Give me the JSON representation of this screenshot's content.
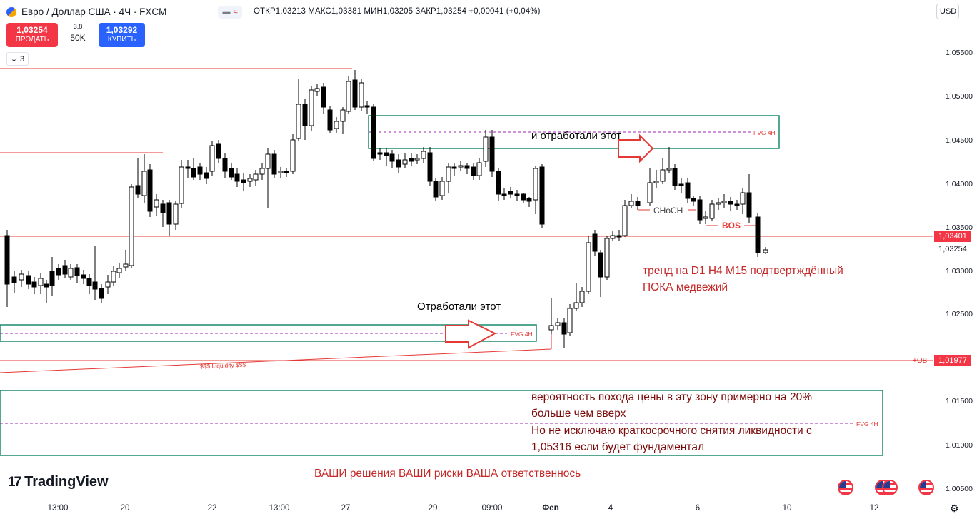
{
  "header": {
    "title": "Евро / Доллар США · 4Ч · FXCM",
    "ohlc": "ОТКР1,03213 МАКС1,03381 МИН1,03205 ЗАКР1,03254 +0,00041 (+0,04%)",
    "currency": "USD"
  },
  "trade": {
    "sell_price": "1,03254",
    "sell_label": "ПРОДАТЬ",
    "buy_price": "1,03292",
    "buy_label": "КУПИТЬ",
    "spread": "3,8",
    "volume": "50K"
  },
  "indicators_count": "3",
  "price_axis": {
    "ticks": [
      "1,05500",
      "1,05000",
      "1,04500",
      "1,04000",
      "1,03500",
      "1,03000",
      "1,02500",
      "1,01500",
      "1,01000",
      "1,00500"
    ],
    "tag_current_line": "1,03401",
    "tag_last": "1,03254",
    "tag_ob": "1,01977",
    "ob_label": "+OB"
  },
  "time_axis": {
    "labels": [
      "13:00",
      "20",
      "22",
      "13:00",
      "27",
      "29",
      "09:00",
      "Фев",
      "4",
      "6",
      "10",
      "12"
    ]
  },
  "annotations": {
    "worked_this_top": "и отработали этот",
    "worked_this_bottom": "Отработали этот",
    "fvg": "FVG 4H",
    "liquidity": "$$$ Liquidity $$$",
    "choch": "CHoCH",
    "bos": "BOS",
    "trend_line1": "тренд на D1 H4 M15 подтвертждённый",
    "trend_line2": "ПОКА   медвежий",
    "prob_line1": "вероятность похода цены в эту зону примерно на 20%",
    "prob_line2": "больше чем вверх",
    "liq_line1": "Но не исключаю краткосрочного снятия ликвидности с",
    "liq_line2": "1,05316 если будет фундаментал",
    "footer": "ВАШИ решения ВАШИ риски ВАША ответственнось"
  },
  "branding": {
    "logo": "TradingView"
  },
  "colors": {
    "sell": "#f23645",
    "buy": "#2962ff",
    "fvg_box": "#1b8a6b",
    "level_line": "#e53935"
  }
}
